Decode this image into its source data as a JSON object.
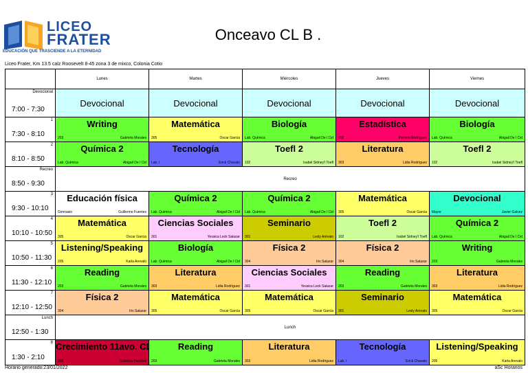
{
  "logo": {
    "line1": "LICEO",
    "line2": "FRATER",
    "tagline": "EDUCACIÓN QUE TRASCIENDE A LA ETERNIDAD"
  },
  "title": "Onceavo CL B .",
  "address": "Liceo Frater, Km 13.5 calz Roosevelt 8-45 zona 3 de mixco, Colonia Cotio",
  "days": [
    "Lunes",
    "Martes",
    "Miércoles",
    "Jueves",
    "Viernes"
  ],
  "colors": {
    "green": "#66ff33",
    "yellow": "#ffff66",
    "magenta": "#ff0066",
    "lightgreen": "#ccff99",
    "orange": "#ffcc66",
    "blue": "#6666ff",
    "pink": "#ffccff",
    "olive": "#cccc00",
    "peach": "#ffcc99",
    "cyan": "#33ffcc",
    "devo": "#ccffff",
    "crimson": "#cc0033"
  },
  "rows": [
    {
      "label": "Devocional",
      "time": "7:00 - 7:30",
      "type": "devo",
      "cells": [
        {
          "text": "Devocional"
        },
        {
          "text": "Devocional"
        },
        {
          "text": "Devocional"
        },
        {
          "text": "Devocional"
        },
        {
          "text": "Devocional"
        }
      ]
    },
    {
      "label": "1",
      "time": "7:30 - 8:10",
      "type": "class",
      "cells": [
        {
          "subject": "Writing",
          "room": "203",
          "teacher": "Gabriela Morales",
          "color": "green"
        },
        {
          "subject": "Matemática",
          "room": "305",
          "teacher": "Oscar Garcia",
          "color": "yellow"
        },
        {
          "subject": "Biología",
          "room": "Lab. Química",
          "teacher": "Abigail De l Cid",
          "color": "green"
        },
        {
          "subject": "Estadística",
          "room": "202",
          "teacher": "Pamela Rodríguez",
          "color": "magenta"
        },
        {
          "subject": "Biología",
          "room": "Lab. Química",
          "teacher": "Abigail De l Cid",
          "color": "green"
        }
      ]
    },
    {
      "label": "2",
      "time": "8:10 - 8:50",
      "type": "class",
      "cells": [
        {
          "subject": "Química 2",
          "room": "Lab. Química",
          "teacher": "Abigail De l Cid",
          "color": "green"
        },
        {
          "subject": "Tecnología",
          "room": "Lab. I",
          "teacher": "Erick Chavalo",
          "color": "blue"
        },
        {
          "subject": "Toefl 2",
          "room": "102",
          "teacher": "Isabel Sidney'l Toefl",
          "color": "lightgreen"
        },
        {
          "subject": "Literatura",
          "room": "303",
          "teacher": "Lidia Rodríguez",
          "color": "orange"
        },
        {
          "subject": "Toefl 2",
          "room": "102",
          "teacher": "Isabel Sidney'l Toefl",
          "color": "lightgreen"
        }
      ]
    },
    {
      "label": "Recreo",
      "time": "8:50 - 9:30",
      "type": "full",
      "text": "Recreo"
    },
    {
      "label": "3",
      "time": "9:30 - 10:10",
      "type": "class",
      "cells": [
        {
          "subject": "Educación física",
          "room": "Gimnasio",
          "teacher": "Guillermo Fuentes",
          "color": "white"
        },
        {
          "subject": "Química 2",
          "room": "Lab. Química",
          "teacher": "Abigail De l Cid",
          "color": "green"
        },
        {
          "subject": "Química 2",
          "room": "Lab. Química",
          "teacher": "Abigail De l Cid",
          "color": "green"
        },
        {
          "subject": "Matemática",
          "room": "305",
          "teacher": "Oscar Garcia",
          "color": "yellow"
        },
        {
          "subject": "Devocional",
          "room": "Mayor",
          "teacher": "Javier Galvez",
          "color": "cyan"
        }
      ]
    },
    {
      "label": "4",
      "time": "10:10 - 10:50",
      "type": "class",
      "cells": [
        {
          "subject": "Matemática",
          "room": "305",
          "teacher": "Oscar Garcia",
          "color": "yellow"
        },
        {
          "subject": "Ciencias Sociales",
          "room": "301",
          "teacher": "Yessica Leck Salazar",
          "color": "pink"
        },
        {
          "subject": "Seminario",
          "room": "301",
          "teacher": "Lesly Arévalo",
          "color": "olive"
        },
        {
          "subject": "Toefl 2",
          "room": "102",
          "teacher": "Isabel Sidney'l Toefl",
          "color": "lightgreen"
        },
        {
          "subject": "Química 2",
          "room": "Lab. Química",
          "teacher": "Abigail De l Cid",
          "color": "green"
        }
      ]
    },
    {
      "label": "5",
      "time": "10:50 - 11:30",
      "type": "class",
      "cells": [
        {
          "subject": "Listening/Speaking",
          "room": "205",
          "teacher": "Karla Arevalo",
          "color": "yellow"
        },
        {
          "subject": "Biología",
          "room": "Lab. Química",
          "teacher": "Abigail De l Cid",
          "color": "green"
        },
        {
          "subject": "Física 2",
          "room": "304",
          "teacher": "Iris Salazar",
          "color": "peach"
        },
        {
          "subject": "Física 2",
          "room": "304",
          "teacher": "Iris Salazar",
          "color": "peach"
        },
        {
          "subject": "Writing",
          "room": "203",
          "teacher": "Gabriela Morales",
          "color": "green"
        }
      ]
    },
    {
      "label": "6",
      "time": "11:30 - 12:10",
      "type": "class",
      "cells": [
        {
          "subject": "Reading",
          "room": "203",
          "teacher": "Gabriela Morales",
          "color": "green"
        },
        {
          "subject": "Literatura",
          "room": "303",
          "teacher": "Lidia Rodríguez",
          "color": "orange"
        },
        {
          "subject": "Ciencias Sociales",
          "room": "301",
          "teacher": "Yessica Leck Salazar",
          "color": "pink"
        },
        {
          "subject": "Reading",
          "room": "203",
          "teacher": "Gabriela Morales",
          "color": "green"
        },
        {
          "subject": "Literatura",
          "room": "303",
          "teacher": "Lidia Rodríguez",
          "color": "orange"
        }
      ]
    },
    {
      "label": "7",
      "time": "12:10 - 12:50",
      "type": "class",
      "cells": [
        {
          "subject": "Física 2",
          "room": "304",
          "teacher": "Iris Salazar",
          "color": "peach"
        },
        {
          "subject": "Matemática",
          "room": "305",
          "teacher": "Oscar Garcia",
          "color": "yellow"
        },
        {
          "subject": "Matemática",
          "room": "305",
          "teacher": "Oscar Garcia",
          "color": "yellow"
        },
        {
          "subject": "Seminario",
          "room": "301",
          "teacher": "Lesly Arévalo",
          "color": "olive"
        },
        {
          "subject": "Matemática",
          "room": "305",
          "teacher": "Oscar Garcia",
          "color": "yellow"
        }
      ]
    },
    {
      "label": "Lunch",
      "time": "12:50 - 1:30",
      "type": "full",
      "text": "Lunch"
    },
    {
      "label": "8",
      "time": "1:30 - 2:10",
      "type": "class",
      "cells": [
        {
          "subject": "Crecimiento 11avo. CL B",
          "room": "305",
          "teacher": "Gabriela Paredes",
          "color": "crimson"
        },
        {
          "subject": "Reading",
          "room": "203",
          "teacher": "Gabriela Morales",
          "color": "green"
        },
        {
          "subject": "Literatura",
          "room": "303",
          "teacher": "Lidia Rodríguez",
          "color": "orange"
        },
        {
          "subject": "Tecnología",
          "room": "Lab. I",
          "teacher": "Erick Chavalo",
          "color": "blue"
        },
        {
          "subject": "Listening/Speaking",
          "room": "205",
          "teacher": "Karla Arevalo",
          "color": "yellow"
        }
      ]
    }
  ],
  "footer": {
    "generated": "Horario generado:23/01/2022",
    "brand": "aSc Horarios"
  }
}
